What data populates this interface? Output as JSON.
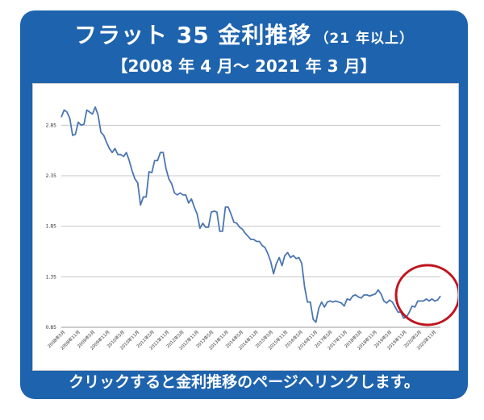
{
  "header": {
    "title": "フラット 35 金利推移",
    "title_sub": "（21 年以上）",
    "period": "【2008 年 4 月～ 2021 年 3 月】"
  },
  "footer": {
    "link_text": "クリックすると金利推移のページへリンクします。"
  },
  "colors": {
    "panel": "#1e63ae",
    "line": "#4a76b2",
    "highlight_circle": "#c0141f",
    "grid": "#c6c6c6"
  },
  "chart_data": {
    "type": "line",
    "title": "",
    "xlabel": "",
    "ylabel": "",
    "ylim": [
      0.85,
      3.1
    ],
    "yticks": [
      "0.85",
      "1.35",
      "1.85",
      "2.35",
      "2.85"
    ],
    "grid": true,
    "x_tick_labels": [
      "2008年5月",
      "2008年11月",
      "2009年5月",
      "2009年11月",
      "2010年5月",
      "2010年11月",
      "2011年5月",
      "2011年11月",
      "2012年5月",
      "2012年11月",
      "2013年5月",
      "2013年11月",
      "2014年5月",
      "2014年11月",
      "2015年5月",
      "2015年11月",
      "2016年5月",
      "2016年11月",
      "2017年5月",
      "2017年11月",
      "2018年5月",
      "2018年11月",
      "2019年5月",
      "2019年11月",
      "2020年5月",
      "2020年11月"
    ],
    "series": [
      {
        "values": [
          2.93,
          3.0,
          2.98,
          2.92,
          2.75,
          2.76,
          2.88,
          2.85,
          2.86,
          3.0,
          2.98,
          2.96,
          3.03,
          2.95,
          2.78,
          2.75,
          2.68,
          2.62,
          2.58,
          2.62,
          2.56,
          2.56,
          2.54,
          2.58,
          2.5,
          2.4,
          2.32,
          2.28,
          2.06,
          2.14,
          2.14,
          2.39,
          2.38,
          2.5,
          2.5,
          2.58,
          2.58,
          2.42,
          2.32,
          2.27,
          2.18,
          2.16,
          2.18,
          2.16,
          2.16,
          2.08,
          2.12,
          2.04,
          1.97,
          1.83,
          1.88,
          1.84,
          1.84,
          1.99,
          2.0,
          1.99,
          1.8,
          1.8,
          2.04,
          2.04,
          1.97,
          1.89,
          1.88,
          1.84,
          1.82,
          1.78,
          1.75,
          1.72,
          1.72,
          1.7,
          1.7,
          1.66,
          1.64,
          1.58,
          1.5,
          1.38,
          1.48,
          1.54,
          1.46,
          1.56,
          1.59,
          1.54,
          1.56,
          1.53,
          1.54,
          1.48,
          1.25,
          1.1,
          1.1,
          0.93,
          0.9,
          1.04,
          1.1,
          1.05,
          1.1,
          1.11,
          1.1,
          1.11,
          1.1,
          1.09,
          1.06,
          1.13,
          1.12,
          1.16,
          1.17,
          1.15,
          1.14,
          1.17,
          1.17,
          1.16,
          1.17,
          1.18,
          1.22,
          1.18,
          1.11,
          1.09,
          1.12,
          1.1,
          1.05,
          1.0,
          1.0,
          0.94,
          0.95,
          1.0,
          1.06,
          1.05,
          1.11,
          1.11,
          1.11,
          1.13,
          1.11,
          1.13,
          1.11,
          1.12,
          1.16
        ]
      }
    ]
  }
}
